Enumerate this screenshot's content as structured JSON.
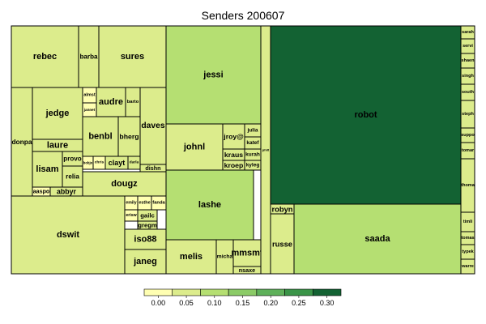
{
  "chart_data": {
    "type": "treemap",
    "title": "Senders 200607",
    "colorbar": {
      "ticks": [
        "0.00",
        "0.05",
        "0.10",
        "0.15",
        "0.20",
        "0.25",
        "0.30"
      ],
      "colors": [
        "#ffffb2",
        "#dcec8c",
        "#b5df72",
        "#8bcb67",
        "#5eb05a",
        "#3a9448",
        "#136233"
      ]
    },
    "cells": [
      {
        "name": "rebec",
        "value": 0.03
      },
      {
        "name": "barba",
        "value": 0.03
      },
      {
        "name": "sures",
        "value": 0.03
      },
      {
        "name": "donpa",
        "value": 0.03
      },
      {
        "name": "almst",
        "value": 0.02
      },
      {
        "name": "jannet",
        "value": 0.02
      },
      {
        "name": "audre",
        "value": 0.03
      },
      {
        "name": "barto",
        "value": 0.03
      },
      {
        "name": "jedge",
        "value": 0.04
      },
      {
        "name": "daves",
        "value": 0.03
      },
      {
        "name": "benbl",
        "value": 0.03
      },
      {
        "name": "bherg",
        "value": 0.03
      },
      {
        "name": "laure",
        "value": 0.04
      },
      {
        "name": "lisam",
        "value": 0.04
      },
      {
        "name": "provo",
        "value": 0.03
      },
      {
        "name": "relia",
        "value": 0.03
      },
      {
        "name": "bobjo",
        "value": 0.02
      },
      {
        "name": "chris",
        "value": 0.02
      },
      {
        "name": "clayt",
        "value": 0.03
      },
      {
        "name": "darla",
        "value": 0.03
      },
      {
        "name": "dishn",
        "value": 0.03
      },
      {
        "name": "aaspo",
        "value": 0.02
      },
      {
        "name": "abbyr",
        "value": 0.03
      },
      {
        "name": "dougz",
        "value": 0.04
      },
      {
        "name": "dswit",
        "value": 0.05
      },
      {
        "name": "emily",
        "value": 0.02
      },
      {
        "name": "esthe",
        "value": 0.02
      },
      {
        "name": "fanda",
        "value": 0.02
      },
      {
        "name": "gailc",
        "value": 0.03
      },
      {
        "name": "erisw",
        "value": 0.02
      },
      {
        "name": "gregm",
        "value": 0.03
      },
      {
        "name": "iso88",
        "value": 0.03
      },
      {
        "name": "janeg",
        "value": 0.03
      },
      {
        "name": "jessi",
        "value": 0.09
      },
      {
        "name": "johnl",
        "value": 0.04
      },
      {
        "name": "jroy@",
        "value": 0.03
      },
      {
        "name": "julia",
        "value": 0.03
      },
      {
        "name": "katef",
        "value": 0.03
      },
      {
        "name": "kraus",
        "value": 0.03
      },
      {
        "name": "kurah",
        "value": 0.03
      },
      {
        "name": "kroep",
        "value": 0.03
      },
      {
        "name": "kyleg",
        "value": 0.03
      },
      {
        "name": "lashe",
        "value": 0.08
      },
      {
        "name": "melis",
        "value": 0.03
      },
      {
        "name": "micha",
        "value": 0.03
      },
      {
        "name": "mmsmt",
        "value": 0.03
      },
      {
        "name": "nsaxe",
        "value": 0.03
      },
      {
        "name": "philt",
        "value": 0.03
      },
      {
        "name": "robyn",
        "value": 0.03
      },
      {
        "name": "russe",
        "value": 0.03
      },
      {
        "name": "robot",
        "value": 0.32
      },
      {
        "name": "saada",
        "value": 0.11
      },
      {
        "name": "sarah",
        "value": 0.03
      },
      {
        "name": "servi",
        "value": 0.03
      },
      {
        "name": "shaen",
        "value": 0.03
      },
      {
        "name": "singh",
        "value": 0.03
      },
      {
        "name": "south",
        "value": 0.03
      },
      {
        "name": "steph",
        "value": 0.03
      },
      {
        "name": "suppo",
        "value": 0.03
      },
      {
        "name": "tomar",
        "value": 0.03
      },
      {
        "name": "thoma",
        "value": 0.03
      },
      {
        "name": "timli",
        "value": 0.03
      },
      {
        "name": "tomas",
        "value": 0.03
      },
      {
        "name": "typek",
        "value": 0.03
      },
      {
        "name": "warre",
        "value": 0.03
      }
    ]
  }
}
